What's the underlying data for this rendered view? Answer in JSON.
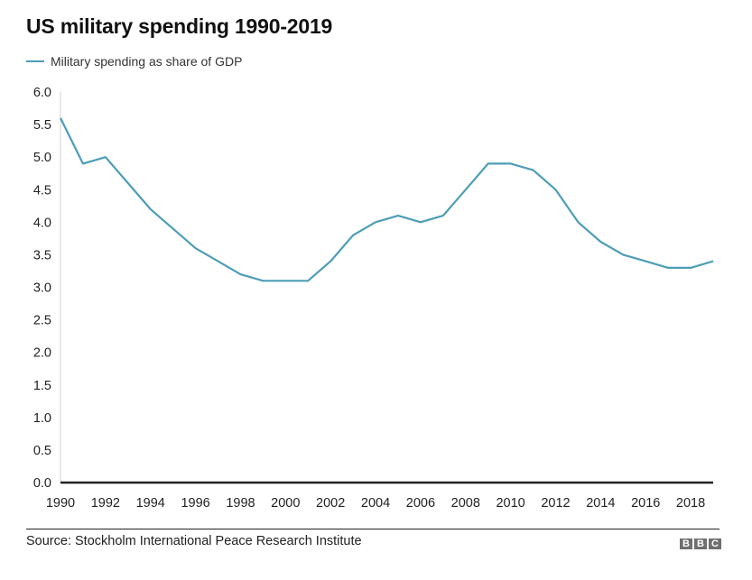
{
  "title": "US military spending 1990-2019",
  "legend": {
    "label": "Military spending as share of GDP",
    "color": "#4d9db7"
  },
  "source": "Source: Stockholm International Peace Research Institute",
  "logo": [
    "B",
    "B",
    "C"
  ],
  "chart_data": {
    "type": "line",
    "title": "US military spending 1990-2019",
    "xlabel": "",
    "ylabel": "",
    "x": [
      1990,
      1991,
      1992,
      1993,
      1994,
      1995,
      1996,
      1997,
      1998,
      1999,
      2000,
      2001,
      2002,
      2003,
      2004,
      2005,
      2006,
      2007,
      2008,
      2009,
      2010,
      2011,
      2012,
      2013,
      2014,
      2015,
      2016,
      2017,
      2018,
      2019
    ],
    "series": [
      {
        "name": "Military spending as share of GDP",
        "color": "#4d9db7",
        "values": [
          5.6,
          4.9,
          5.0,
          4.6,
          4.2,
          3.9,
          3.6,
          3.4,
          3.2,
          3.1,
          3.1,
          3.1,
          3.4,
          3.8,
          4.0,
          4.1,
          4.0,
          4.1,
          4.5,
          4.9,
          4.9,
          4.8,
          4.5,
          4.0,
          3.7,
          3.5,
          3.4,
          3.3,
          3.3,
          3.4
        ]
      }
    ],
    "xlim": [
      1990,
      2019
    ],
    "ylim": [
      0,
      6
    ],
    "yticks": [
      "0.0",
      "0.5",
      "1.0",
      "1.5",
      "2.0",
      "2.5",
      "3.0",
      "3.5",
      "4.0",
      "4.5",
      "5.0",
      "5.5",
      "6.0"
    ],
    "xticks": [
      "1990",
      "1992",
      "1994",
      "1996",
      "1998",
      "2000",
      "2002",
      "2004",
      "2006",
      "2008",
      "2010",
      "2012",
      "2014",
      "2016",
      "2018"
    ],
    "grid": false,
    "legend_position": "top-left"
  }
}
